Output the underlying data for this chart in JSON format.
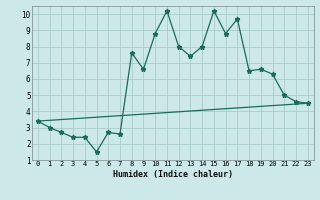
{
  "xlabel": "Humidex (Indice chaleur)",
  "bg_color": "#cce8e8",
  "grid_color": "#aacccc",
  "line_color": "#1a6b5a",
  "xlim": [
    -0.5,
    23.5
  ],
  "ylim": [
    1,
    10.5
  ],
  "xticks": [
    0,
    1,
    2,
    3,
    4,
    5,
    6,
    7,
    8,
    9,
    10,
    11,
    12,
    13,
    14,
    15,
    16,
    17,
    18,
    19,
    20,
    21,
    22,
    23
  ],
  "yticks": [
    1,
    2,
    3,
    4,
    5,
    6,
    7,
    8,
    9,
    10
  ],
  "line1_x": [
    0,
    1,
    2,
    3,
    4,
    5,
    6,
    7,
    8,
    9,
    10,
    11,
    12,
    13,
    14,
    15,
    16,
    17,
    18,
    19,
    20,
    21,
    22,
    23
  ],
  "line1_y": [
    3.4,
    3.0,
    2.7,
    2.4,
    2.4,
    1.5,
    2.7,
    2.6,
    7.6,
    6.6,
    8.8,
    10.2,
    8.0,
    7.4,
    8.0,
    10.2,
    8.8,
    9.7,
    6.5,
    6.6,
    6.3,
    5.0,
    4.6,
    4.5
  ],
  "line2_x": [
    0,
    23
  ],
  "line2_y": [
    3.4,
    4.5
  ],
  "xlabel_fontsize": 6.0,
  "tick_fontsize": 5.0
}
